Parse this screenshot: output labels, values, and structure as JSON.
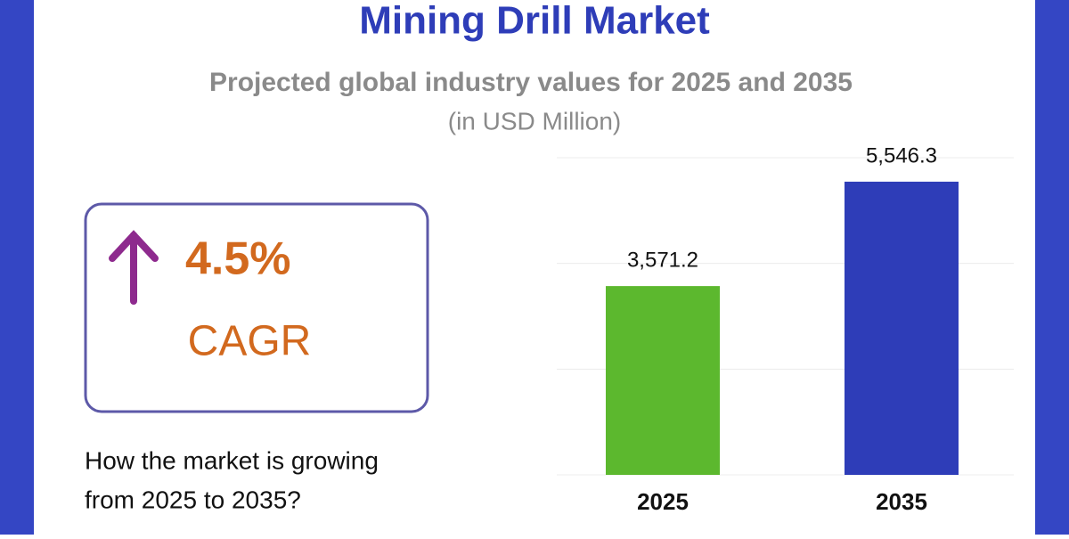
{
  "header": {
    "title": "Mining Drill Market",
    "subtitle": "Projected global industry values for 2025 and 2035",
    "unit": "(in USD Million)"
  },
  "cagr": {
    "value": "4.5%",
    "label": "CAGR"
  },
  "question": [
    "How the market is growing",
    "from 2025 to 2035?"
  ],
  "chart_data": {
    "type": "bar",
    "categories": [
      "2025",
      "2035"
    ],
    "values": [
      3571.2,
      5546.3
    ],
    "value_labels": [
      "3,571.2",
      "5,546.3"
    ],
    "colors": [
      "#5cb82e",
      "#2e3db8"
    ],
    "ylim": [
      0,
      6000
    ],
    "yticks": [
      0,
      2000,
      4000,
      6000
    ],
    "grid": true
  }
}
